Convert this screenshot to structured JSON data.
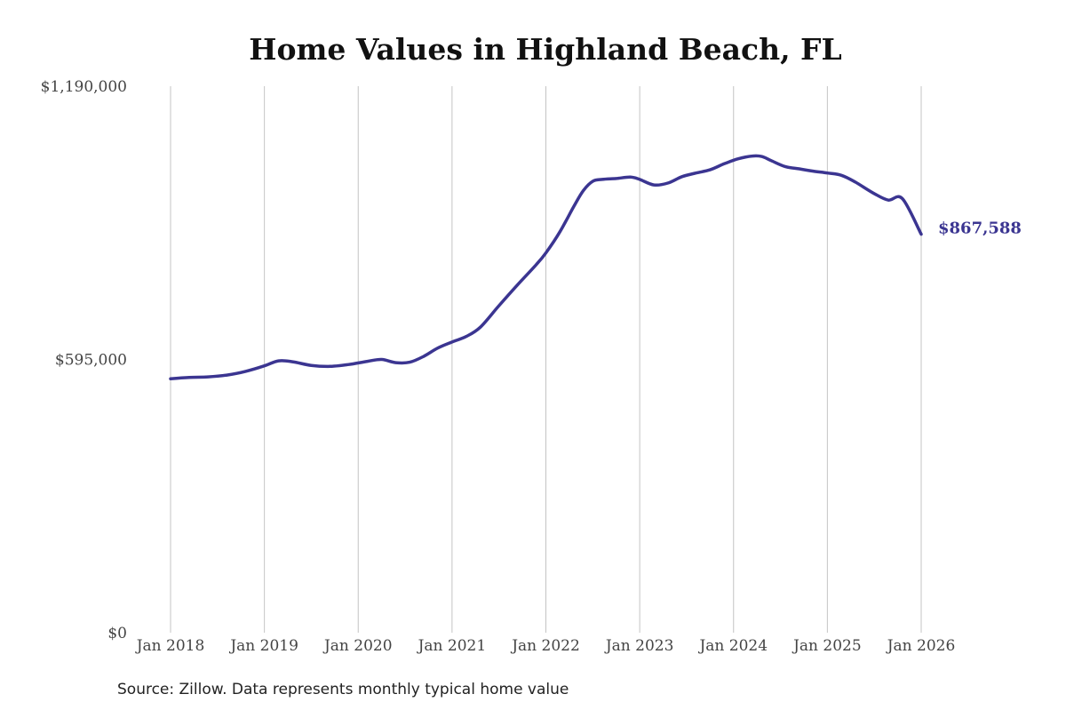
{
  "chart_data": {
    "type": "line",
    "title": "Home Values in Highland Beach, FL",
    "xlabel": "",
    "ylabel": "",
    "ylim": [
      0,
      1190000
    ],
    "yticks": [
      {
        "value": 0,
        "label": "$0"
      },
      {
        "value": 595000,
        "label": "$595,000"
      },
      {
        "value": 1190000,
        "label": "$1,190,000"
      }
    ],
    "xticks": [
      {
        "value": 2018,
        "label": "Jan 2018"
      },
      {
        "value": 2019,
        "label": "Jan 2019"
      },
      {
        "value": 2020,
        "label": "Jan 2020"
      },
      {
        "value": 2021,
        "label": "Jan 2021"
      },
      {
        "value": 2022,
        "label": "Jan 2022"
      },
      {
        "value": 2023,
        "label": "Jan 2023"
      },
      {
        "value": 2024,
        "label": "Jan 2024"
      },
      {
        "value": 2025,
        "label": "Jan 2025"
      },
      {
        "value": 2026,
        "label": "Jan 2026"
      }
    ],
    "xlim": [
      2018,
      2026
    ],
    "grid": "vertical",
    "line_color": "#3b3591",
    "series": [
      {
        "x": [
          2018.0,
          2018.2,
          2018.4,
          2018.6,
          2018.8,
          2019.0,
          2019.15,
          2019.3,
          2019.5,
          2019.7,
          2019.9,
          2020.1,
          2020.25,
          2020.4,
          2020.55,
          2020.7,
          2020.85,
          2021.0,
          2021.15,
          2021.3,
          2021.5,
          2021.7,
          2021.9,
          2022.0,
          2022.15,
          2022.3,
          2022.4,
          2022.5,
          2022.6,
          2022.75,
          2022.9,
          2023.0,
          2023.15,
          2023.3,
          2023.45,
          2023.6,
          2023.75,
          2023.9,
          2024.05,
          2024.2,
          2024.3,
          2024.4,
          2024.55,
          2024.7,
          2024.85,
          2025.0,
          2025.15,
          2025.3,
          2025.5,
          2025.65,
          2025.8,
          2026.0
        ],
        "y": [
          553000,
          556000,
          557000,
          561000,
          569000,
          581000,
          592000,
          590000,
          582000,
          580000,
          584000,
          591000,
          595000,
          588000,
          589000,
          602000,
          620000,
          633000,
          645000,
          665000,
          712000,
          758000,
          802000,
          827000,
          873000,
          929000,
          963000,
          983000,
          987000,
          989000,
          992000,
          987000,
          975000,
          979000,
          993000,
          1001000,
          1008000,
          1021000,
          1032000,
          1038000,
          1037000,
          1028000,
          1015000,
          1010000,
          1005000,
          1001000,
          996000,
          981000,
          956000,
          942000,
          945000,
          867588
        ]
      }
    ],
    "end_label": "$867,588",
    "source": "Source: Zillow. Data represents monthly typical home value"
  }
}
